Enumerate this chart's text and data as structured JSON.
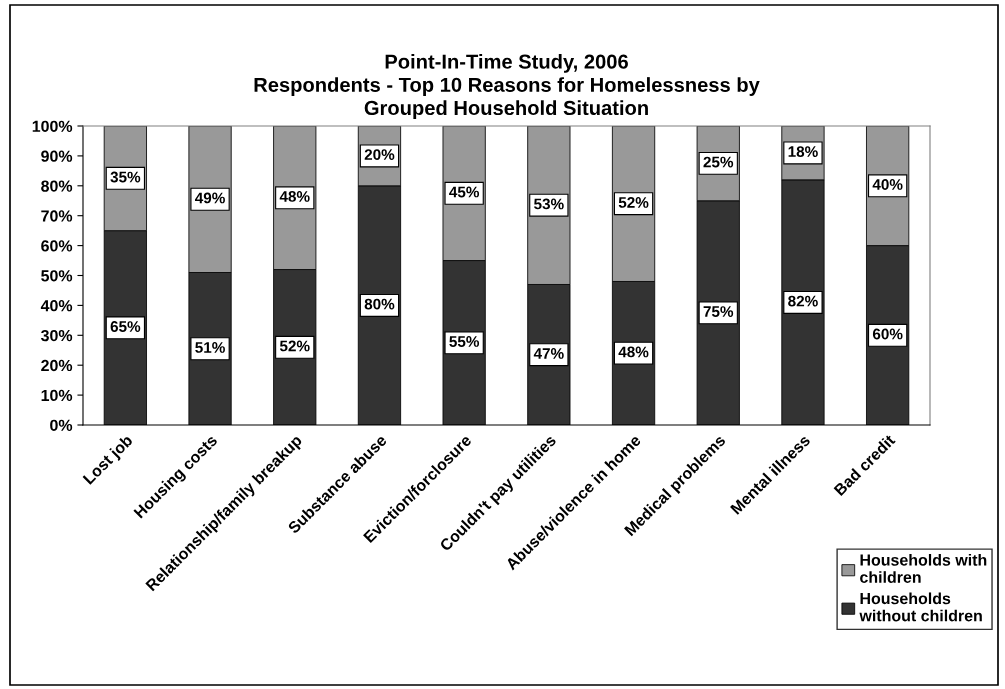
{
  "chart_data": {
    "type": "bar",
    "stacked": true,
    "title": "Point-In-Time Study, 2006\nRespondents - Top 10 Reasons for Homelessness by\nGrouped Household Situation",
    "categories": [
      "Lost job",
      "Housing costs",
      "Relationship/family breakup",
      "Substance abuse",
      "Eviction/forclosure",
      "Couldn't pay utilities",
      "Abuse/violence in home",
      "Medical problems",
      "Mental illness",
      "Bad credit"
    ],
    "series": [
      {
        "name": "Households without children",
        "color": "#333333",
        "values": [
          65,
          51,
          52,
          80,
          55,
          47,
          48,
          75,
          82,
          60
        ],
        "value_labels": [
          "65%",
          "51%",
          "52%",
          "80%",
          "55%",
          "47%",
          "48%",
          "75%",
          "82%",
          "60%"
        ]
      },
      {
        "name": "Households with children",
        "color": "#999999",
        "values": [
          35,
          49,
          48,
          20,
          45,
          53,
          52,
          25,
          18,
          40
        ],
        "value_labels": [
          "35%",
          "49%",
          "48%",
          "20%",
          "45%",
          "53%",
          "52%",
          "25%",
          "18%",
          "40%"
        ]
      }
    ],
    "ylim": [
      0,
      100
    ],
    "yticks": [
      {
        "value": 0,
        "label": "0%"
      },
      {
        "value": 10,
        "label": "10%"
      },
      {
        "value": 20,
        "label": "20%"
      },
      {
        "value": 30,
        "label": "30%"
      },
      {
        "value": 40,
        "label": "40%"
      },
      {
        "value": 50,
        "label": "50%"
      },
      {
        "value": 60,
        "label": "60%"
      },
      {
        "value": 70,
        "label": "70%"
      },
      {
        "value": 80,
        "label": "80%"
      },
      {
        "value": 90,
        "label": "90%"
      },
      {
        "value": 100,
        "label": "100%"
      }
    ],
    "grid": false,
    "legend": "bottom right"
  }
}
